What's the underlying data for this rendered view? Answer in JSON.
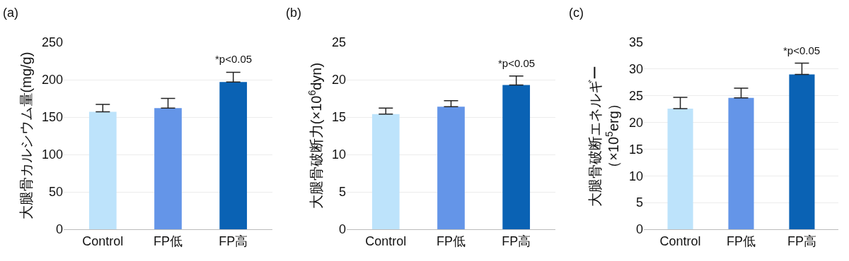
{
  "chart_data": [
    {
      "type": "bar",
      "title": "(a)",
      "ylabel": "大腿骨カルシウム量(mg/g)",
      "categories": [
        "Control",
        "FP低",
        "FP高"
      ],
      "values": [
        157,
        162,
        197
      ],
      "colors": [
        "#bde3fb",
        "#6495e8",
        "#0a62b4"
      ],
      "errors": [
        [
          157,
          167
        ],
        [
          162,
          175
        ],
        [
          197,
          210
        ]
      ],
      "ylim": [
        0,
        250
      ],
      "yticks": [
        0,
        50,
        100,
        150,
        200,
        250
      ],
      "grid": "y",
      "annotations": [
        "*p<0.05"
      ]
    },
    {
      "type": "bar",
      "title": "(b)",
      "ylabel": "大腿骨破断力(×10$^{6}$dyn)",
      "categories": [
        "Control",
        "FP低",
        "FP高"
      ],
      "values": [
        15.4,
        16.4,
        19.3
      ],
      "colors": [
        "#bde3fb",
        "#6495e8",
        "#0a62b4"
      ],
      "errors": [
        [
          15.4,
          16.2
        ],
        [
          16.4,
          17.2
        ],
        [
          19.3,
          20.5
        ]
      ],
      "ylim": [
        0,
        25
      ],
      "yticks": [
        0,
        5,
        10,
        15,
        20,
        25
      ],
      "grid": "y",
      "annotations": [
        "*p<0.05"
      ]
    },
    {
      "type": "bar",
      "title": "(c)",
      "ylabel": "大腿骨破断エネルギー（×10$^{5}$erg）",
      "categories": [
        "Control",
        "FP低",
        "FP高"
      ],
      "values": [
        22.6,
        24.6,
        29.0
      ],
      "colors": [
        "#bde3fb",
        "#6495e8",
        "#0a62b4"
      ],
      "errors": [
        [
          22.6,
          24.7
        ],
        [
          24.6,
          26.4
        ],
        [
          29.0,
          31.1
        ]
      ],
      "ylim": [
        0,
        35
      ],
      "yticks": [
        0,
        5,
        10,
        15,
        20,
        25,
        30,
        35
      ],
      "grid": "y",
      "annotations": [
        "*p<0.05"
      ]
    }
  ]
}
